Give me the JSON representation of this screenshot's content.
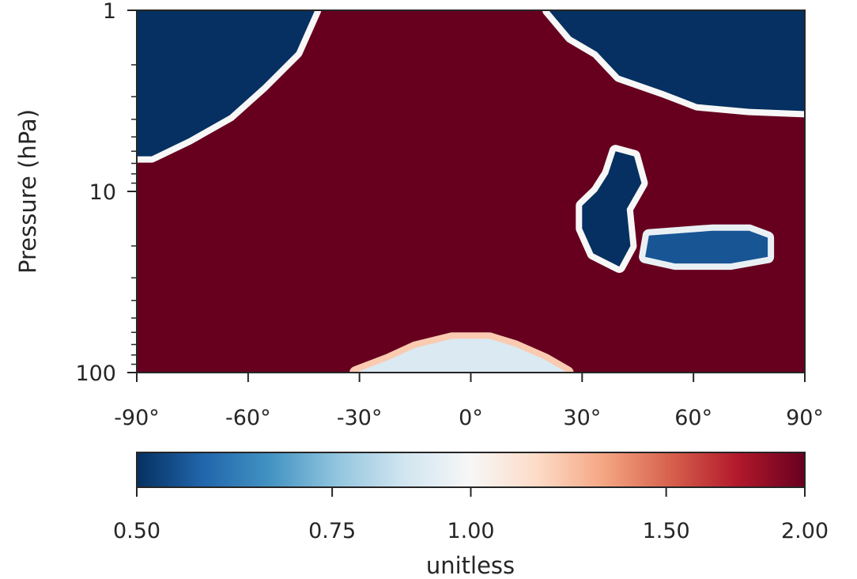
{
  "chart_data": {
    "type": "heatmap",
    "title": "",
    "xlabel": "",
    "ylabel": "Pressure (hPa)",
    "x_range": [
      -90,
      90
    ],
    "y_range": [
      1,
      100
    ],
    "y_scale": "log",
    "y_inverted": true,
    "x_ticks": [
      {
        "value": -90,
        "label": "-90°"
      },
      {
        "value": -60,
        "label": "-60°"
      },
      {
        "value": -30,
        "label": "-30°"
      },
      {
        "value": 0,
        "label": "0°"
      },
      {
        "value": 30,
        "label": "30°"
      },
      {
        "value": 60,
        "label": "60°"
      },
      {
        "value": 90,
        "label": "90°"
      }
    ],
    "y_ticks": [
      {
        "value": 1,
        "label": "1"
      },
      {
        "value": 10,
        "label": "10"
      },
      {
        "value": 100,
        "label": "100"
      }
    ],
    "colorbar": {
      "label": "unitless",
      "colormap": "RdBu_r",
      "range": [
        0.5,
        2.0
      ],
      "ticks": [
        {
          "value": 0.5,
          "label": "0.50"
        },
        {
          "value": 0.75,
          "label": "0.75"
        },
        {
          "value": 1.0,
          "label": "1.00"
        },
        {
          "value": 1.5,
          "label": "1.50"
        },
        {
          "value": 2.0,
          "label": "2.00"
        }
      ],
      "orientation": "horizontal",
      "placement": "bottom"
    },
    "background_value": 2.0,
    "regions": [
      {
        "name": "sh-polar-upper",
        "value": 0.5,
        "edge_value": 1.0,
        "polygon": [
          [
            -90,
            1
          ],
          [
            -42,
            1
          ],
          [
            -47,
            1.7
          ],
          [
            -56,
            2.6
          ],
          [
            -65,
            3.8
          ],
          [
            -76,
            5.1
          ],
          [
            -86,
            6.4
          ],
          [
            -90,
            6.4
          ]
        ]
      },
      {
        "name": "nh-polar-upper",
        "value": 0.5,
        "edge_value": 1.0,
        "polygon": [
          [
            21,
            1
          ],
          [
            90,
            1
          ],
          [
            90,
            3.6
          ],
          [
            75,
            3.5
          ],
          [
            61,
            3.3
          ],
          [
            52,
            2.8
          ],
          [
            40,
            2.3
          ],
          [
            34,
            1.7
          ],
          [
            27,
            1.4
          ]
        ]
      },
      {
        "name": "nh-midlat-cell",
        "value": 0.5,
        "edge_value": 1.0,
        "polygon": [
          [
            39,
            6.0
          ],
          [
            44,
            6.4
          ],
          [
            46,
            9.0
          ],
          [
            42,
            12.5
          ],
          [
            43,
            20
          ],
          [
            40,
            26
          ],
          [
            33,
            22
          ],
          [
            30,
            16
          ],
          [
            30,
            12
          ],
          [
            34,
            10
          ],
          [
            37,
            8
          ]
        ]
      },
      {
        "name": "nh-midlat-band",
        "value": 0.55,
        "edge_value": 0.95,
        "polygon": [
          [
            48,
            17.5
          ],
          [
            65,
            16.5
          ],
          [
            75,
            16.5
          ],
          [
            80,
            18
          ],
          [
            80,
            23
          ],
          [
            70,
            25
          ],
          [
            55,
            25
          ],
          [
            47,
            23
          ]
        ]
      },
      {
        "name": "tropical-lower",
        "value": 0.9,
        "edge_value": 1.2,
        "polygon": [
          [
            -31,
            100
          ],
          [
            -22,
            85
          ],
          [
            -15,
            73
          ],
          [
            -5,
            65
          ],
          [
            5,
            65
          ],
          [
            12,
            72
          ],
          [
            20,
            85
          ],
          [
            26,
            100
          ]
        ]
      }
    ]
  }
}
